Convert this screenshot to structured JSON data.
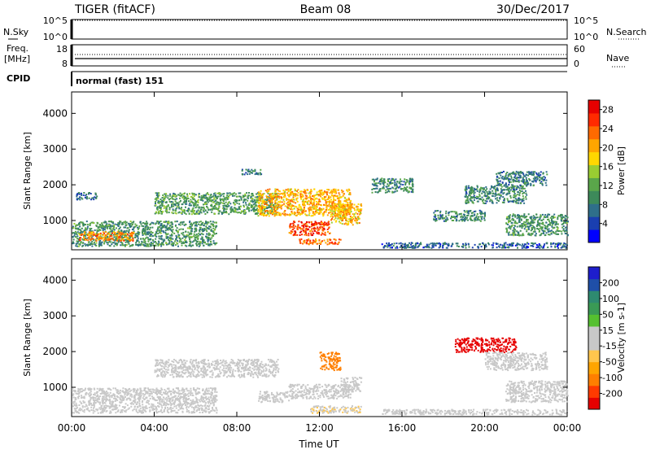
{
  "header": {
    "radar": "TIGER (fitACF)",
    "beam": "Beam 08",
    "date": "30/Dec/2017"
  },
  "nsky": {
    "label": "N.Sky",
    "ticks": [
      "10^5",
      "10^0"
    ],
    "right_label": "N.Search",
    "right_ticks": [
      "10^5",
      "10^0"
    ]
  },
  "freq": {
    "label_top": "Freq.",
    "label_unit": "[MHz]",
    "ticks": [
      "18",
      "8"
    ],
    "right_label": "Nave",
    "right_ticks": [
      "60",
      "0"
    ]
  },
  "cpid": {
    "label": "CPID",
    "value": "normal (fast) 151"
  },
  "colors": {
    "power_scale": [
      "#0000ff",
      "#1a3fb0",
      "#2f6f8a",
      "#3d8a5a",
      "#5aa64a",
      "#9acd32",
      "#ffd700",
      "#ffa500",
      "#ff6a00",
      "#ff2a00",
      "#e60000"
    ],
    "velocity_scale": [
      "#e60000",
      "#ff3a00",
      "#ff7f00",
      "#ffa500",
      "#ffc64d",
      "#c8c8c8",
      "#c8c8c8",
      "#55c030",
      "#3a9a55",
      "#2e8a70",
      "#1f4fa8",
      "#1e1ecc"
    ]
  },
  "chart_data": [
    {
      "type": "heatmap",
      "title": "",
      "xlabel": "",
      "ylabel": "Slant Range [km]",
      "xlim": [
        0,
        24
      ],
      "ylim": [
        180,
        4600
      ],
      "x_tick_labels": [
        "00:00",
        "04:00",
        "08:00",
        "12:00",
        "16:00",
        "20:00",
        "00:00"
      ],
      "y_ticks": [
        1000,
        2000,
        3000,
        4000
      ],
      "colorbar": {
        "label": "Power [dB]",
        "ticks": [
          4,
          8,
          12,
          16,
          20,
          24,
          28
        ],
        "range": [
          0,
          30
        ]
      },
      "structures": [
        {
          "t0": 0,
          "t1": 7.0,
          "r0": 300,
          "r1": 1000,
          "value": 10
        },
        {
          "t0": 0.3,
          "t1": 3.0,
          "r0": 450,
          "r1": 700,
          "value": 22
        },
        {
          "t0": 0.2,
          "t1": 1.2,
          "r0": 1600,
          "r1": 1800,
          "value": 7
        },
        {
          "t0": 4.0,
          "t1": 10.0,
          "r0": 1200,
          "r1": 1800,
          "value": 11
        },
        {
          "t0": 9.0,
          "t1": 13.5,
          "r0": 1150,
          "r1": 1900,
          "value": 20
        },
        {
          "t0": 10.5,
          "t1": 12.5,
          "r0": 600,
          "r1": 1000,
          "value": 25
        },
        {
          "t0": 11.0,
          "t1": 13.0,
          "r0": 350,
          "r1": 500,
          "value": 23
        },
        {
          "t0": 12.5,
          "t1": 14.0,
          "r0": 900,
          "r1": 1500,
          "value": 19
        },
        {
          "t0": 14.5,
          "t1": 16.5,
          "r0": 1800,
          "r1": 2200,
          "value": 9
        },
        {
          "t0": 8.2,
          "t1": 9.2,
          "r0": 2300,
          "r1": 2450,
          "value": 8
        },
        {
          "t0": 17.5,
          "t1": 20.0,
          "r0": 1000,
          "r1": 1300,
          "value": 9
        },
        {
          "t0": 19.0,
          "t1": 22.0,
          "r0": 1500,
          "r1": 2000,
          "value": 9
        },
        {
          "t0": 20.5,
          "t1": 23.0,
          "r0": 2000,
          "r1": 2400,
          "value": 8
        },
        {
          "t0": 21.0,
          "t1": 24.0,
          "r0": 600,
          "r1": 1200,
          "value": 10
        },
        {
          "t0": 15.0,
          "t1": 24.0,
          "r0": 250,
          "r1": 400,
          "value": 6
        }
      ]
    },
    {
      "type": "heatmap",
      "title": "",
      "xlabel": "Time UT",
      "ylabel": "Slant Range [km]",
      "xlim": [
        0,
        24
      ],
      "ylim": [
        180,
        4600
      ],
      "x_tick_labels": [
        "00:00",
        "04:00",
        "08:00",
        "12:00",
        "16:00",
        "20:00",
        "00:00"
      ],
      "y_ticks": [
        1000,
        2000,
        3000,
        4000
      ],
      "colorbar": {
        "label": "Velocity [m s-1]",
        "ticks": [
          200,
          100,
          50,
          15,
          -15,
          -50,
          -100,
          -200
        ],
        "range": [
          -250,
          250
        ]
      },
      "structures": [
        {
          "t0": 0,
          "t1": 7.0,
          "r0": 300,
          "r1": 1000,
          "value": 0
        },
        {
          "t0": 4.0,
          "t1": 10.0,
          "r0": 1300,
          "r1": 1800,
          "value": 0
        },
        {
          "t0": 9.0,
          "t1": 10.5,
          "r0": 600,
          "r1": 900,
          "value": 30
        },
        {
          "t0": 10.5,
          "t1": 13.5,
          "r0": 700,
          "r1": 1100,
          "value": 0
        },
        {
          "t0": 12.0,
          "t1": 13.0,
          "r0": 1500,
          "r1": 2000,
          "value": -150
        },
        {
          "t0": 13.0,
          "t1": 14.0,
          "r0": 900,
          "r1": 1300,
          "value": 30
        },
        {
          "t0": 11.5,
          "t1": 14.0,
          "r0": 300,
          "r1": 500,
          "value": -40
        },
        {
          "t0": 18.5,
          "t1": 21.5,
          "r0": 2000,
          "r1": 2400,
          "value": -220
        },
        {
          "t0": 20.0,
          "t1": 23.0,
          "r0": 1500,
          "r1": 2000,
          "value": 0
        },
        {
          "t0": 21.0,
          "t1": 24.0,
          "r0": 600,
          "r1": 1200,
          "value": 0
        },
        {
          "t0": 15.0,
          "t1": 24.0,
          "r0": 250,
          "r1": 400,
          "value": -30
        }
      ]
    }
  ]
}
